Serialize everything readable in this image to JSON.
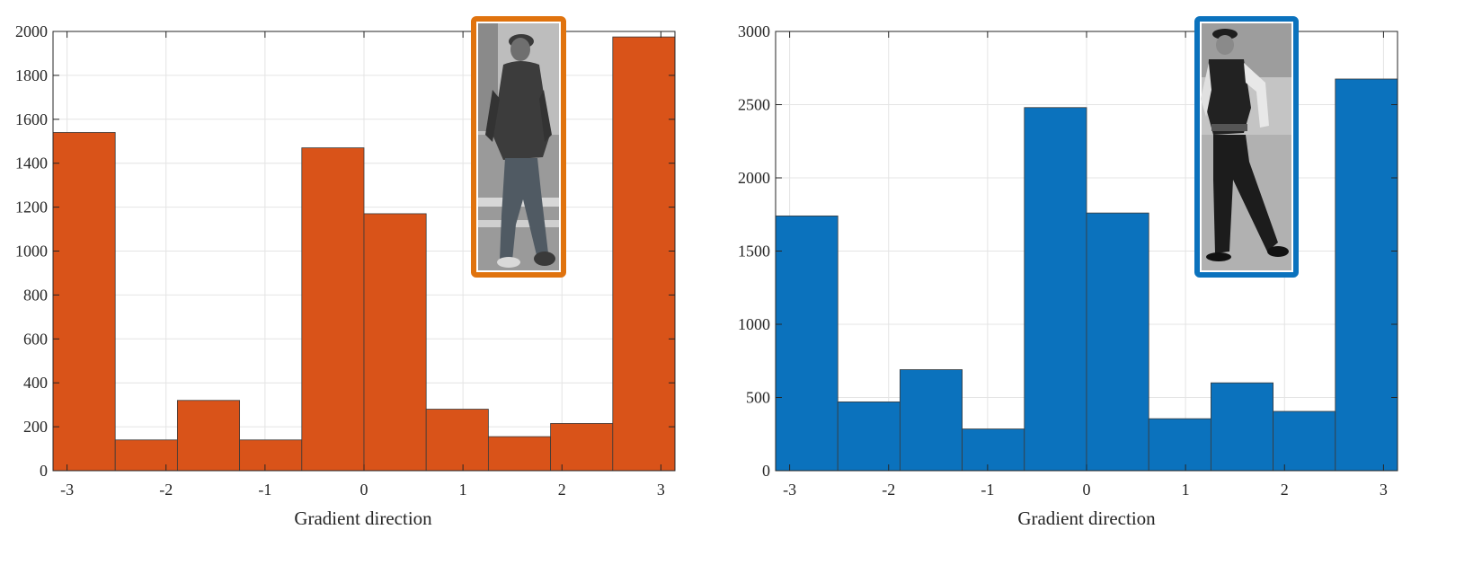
{
  "chart_data": [
    {
      "type": "bar",
      "bin_edges": [
        -3.1416,
        -2.5133,
        -1.885,
        -1.2566,
        -0.6283,
        0,
        0.6283,
        1.2566,
        1.885,
        2.5133,
        3.1416
      ],
      "values": [
        1540,
        140,
        320,
        140,
        1470,
        1170,
        280,
        155,
        215,
        1975
      ],
      "xlim": [
        -3.1416,
        3.1416
      ],
      "ylim": [
        0,
        2000
      ],
      "xticks": [
        -3,
        -2,
        -1,
        0,
        1,
        2,
        3
      ],
      "yticks": [
        0,
        200,
        400,
        600,
        800,
        1000,
        1200,
        1400,
        1600,
        1800,
        2000
      ],
      "xlabel": "Gradient direction",
      "ylabel": "",
      "title": "",
      "grid": true,
      "bar_color": "#D95319",
      "inset_border_color": "#E0730E",
      "inset": "pedestrian photo (grayscale) of a man in a hooded jacket and jeans walking"
    },
    {
      "type": "bar",
      "bin_edges": [
        -3.1416,
        -2.5133,
        -1.885,
        -1.2566,
        -0.6283,
        0,
        0.6283,
        1.2566,
        1.885,
        2.5133,
        3.1416
      ],
      "values": [
        1740,
        470,
        690,
        285,
        2480,
        1760,
        355,
        600,
        405,
        2675
      ],
      "xlim": [
        -3.1416,
        3.1416
      ],
      "ylim": [
        0,
        3000
      ],
      "xticks": [
        -3,
        -2,
        -1,
        0,
        1,
        2,
        3
      ],
      "yticks": [
        0,
        500,
        1000,
        1500,
        2000,
        2500,
        3000
      ],
      "xlabel": "Gradient direction",
      "ylabel": "",
      "title": "",
      "grid": true,
      "bar_color": "#0B72BD",
      "inset_border_color": "#0B72BD",
      "inset": "pedestrian photo (grayscale) of a uniformed police officer walking"
    }
  ]
}
